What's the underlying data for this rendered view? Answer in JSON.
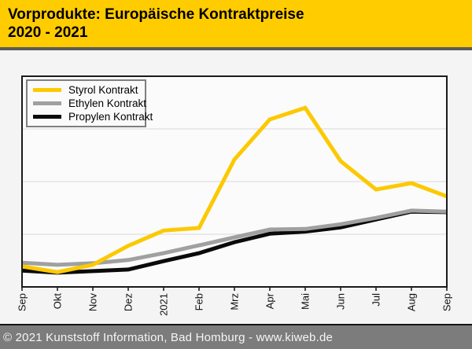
{
  "header": {
    "title_line1": "Vorprodukte: Europäische Kontraktpreise",
    "title_line2": "2020 - 2021",
    "bg_color": "#FFCC00",
    "text_color": "#000000"
  },
  "footer": {
    "text": "© 2021 Kunststoff Information, Bad Homburg - www.kiweb.de",
    "bg_color": "#7C7C7C",
    "text_color": "#F5F5F5"
  },
  "chart_data": {
    "type": "line",
    "title": "Vorprodukte: Europäische Kontraktpreise 2020 - 2021",
    "xlabel": "",
    "ylabel": "",
    "y_axis_tick_labels_visible": false,
    "value_unit_note": "no numeric y-axis shown; values estimated in gridline units (bottom axis = 0, one gridline interval = 1, plot top = 4)",
    "ylim": [
      0,
      4
    ],
    "gridlines_y": [
      1,
      2,
      3
    ],
    "grid_visible": true,
    "legend_position": "top-left",
    "categories": [
      "Sep",
      "Okt",
      "Nov",
      "Dez",
      "2021",
      "Feb",
      "Mrz",
      "Apr",
      "Mai",
      "Jun",
      "Jul",
      "Aug",
      "Sep"
    ],
    "series": [
      {
        "name": "Styrol Kontrakt",
        "color": "#FCC900",
        "values": [
          0.39,
          0.28,
          0.42,
          0.78,
          1.07,
          1.12,
          2.42,
          3.18,
          3.4,
          2.39,
          1.85,
          1.97,
          1.72
        ]
      },
      {
        "name": "Ethylen Kontrakt",
        "color": "#A0A0A0",
        "values": [
          0.46,
          0.42,
          0.45,
          0.51,
          0.64,
          0.79,
          0.94,
          1.09,
          1.1,
          1.19,
          1.31,
          1.45,
          1.43
        ]
      },
      {
        "name": "Propylen Kontrakt",
        "color": "#0A0A0A",
        "values": [
          0.31,
          0.27,
          0.3,
          0.33,
          0.49,
          0.64,
          0.85,
          1.01,
          1.05,
          1.13,
          1.28,
          1.43,
          1.42
        ]
      }
    ],
    "style": {
      "plot_bg": "#FBFBFB",
      "plot_border_color": "#1A1A1A",
      "grid_color": "#D9D9D9",
      "tick_color": "#111111",
      "tick_label_color": "#111111",
      "line_width": 5
    }
  }
}
